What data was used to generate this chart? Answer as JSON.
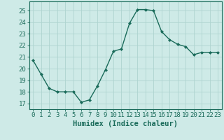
{
  "x": [
    0,
    1,
    2,
    3,
    4,
    5,
    6,
    7,
    8,
    9,
    10,
    11,
    12,
    13,
    14,
    15,
    16,
    17,
    18,
    19,
    20,
    21,
    22,
    23
  ],
  "y": [
    20.7,
    19.5,
    18.3,
    18.0,
    18.0,
    18.0,
    17.1,
    17.3,
    18.5,
    19.9,
    21.5,
    21.7,
    23.9,
    25.1,
    25.1,
    25.0,
    23.2,
    22.5,
    22.1,
    21.9,
    21.2,
    21.4,
    21.4,
    21.4
  ],
  "line_color": "#1a6b5a",
  "marker": "D",
  "marker_size": 2.0,
  "bg_color": "#ceeae7",
  "grid_color": "#aed4d0",
  "xlabel": "Humidex (Indice chaleur)",
  "xlim": [
    -0.5,
    23.5
  ],
  "ylim": [
    16.5,
    25.8
  ],
  "yticks": [
    17,
    18,
    19,
    20,
    21,
    22,
    23,
    24,
    25
  ],
  "xticks": [
    0,
    1,
    2,
    3,
    4,
    5,
    6,
    7,
    8,
    9,
    10,
    11,
    12,
    13,
    14,
    15,
    16,
    17,
    18,
    19,
    20,
    21,
    22,
    23
  ],
  "linewidth": 1.0,
  "xlabel_fontsize": 7.5,
  "tick_fontsize": 6.5
}
